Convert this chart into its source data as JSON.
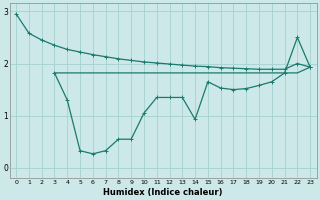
{
  "xlabel": "Humidex (Indice chaleur)",
  "background_color": "#cce8e8",
  "grid_color": "#aad4d4",
  "line_color": "#1a7a6e",
  "x_ticks": [
    0,
    1,
    2,
    3,
    4,
    5,
    6,
    7,
    8,
    9,
    10,
    11,
    12,
    13,
    14,
    15,
    16,
    17,
    18,
    19,
    20,
    21,
    22,
    23
  ],
  "ylim": [
    -0.2,
    3.15
  ],
  "xlim": [
    -0.5,
    23.5
  ],
  "yticks": [
    0,
    1,
    2,
    3
  ],
  "line1_x": [
    0,
    1,
    2,
    3,
    4,
    5,
    6,
    7,
    8,
    9,
    10,
    11,
    12,
    13,
    14,
    15,
    16,
    17,
    18,
    19,
    20,
    21,
    22,
    23
  ],
  "line1_y": [
    2.95,
    2.58,
    2.45,
    2.35,
    2.27,
    2.22,
    2.17,
    2.13,
    2.09,
    2.06,
    2.03,
    2.01,
    1.99,
    1.97,
    1.95,
    1.94,
    1.92,
    1.91,
    1.9,
    1.89,
    1.89,
    1.89,
    2.0,
    1.93
  ],
  "line2_x": [
    3,
    4,
    5,
    6,
    7,
    8,
    9,
    10,
    11,
    12,
    13,
    14,
    15,
    16,
    17,
    18,
    19,
    20,
    21,
    22,
    23
  ],
  "line2_y": [
    1.82,
    1.82,
    1.82,
    1.82,
    1.82,
    1.82,
    1.82,
    1.82,
    1.82,
    1.82,
    1.82,
    1.82,
    1.82,
    1.82,
    1.82,
    1.82,
    1.82,
    1.82,
    1.82,
    1.82,
    1.93
  ],
  "line3_x": [
    3,
    4,
    5,
    6,
    7,
    8,
    9,
    10,
    11,
    12,
    13,
    14,
    15,
    16,
    17,
    18,
    19,
    20,
    21,
    22,
    23
  ],
  "line3_y": [
    1.82,
    1.3,
    0.33,
    0.27,
    0.33,
    0.55,
    0.55,
    1.05,
    1.35,
    1.35,
    1.35,
    0.93,
    1.65,
    1.53,
    1.5,
    1.52,
    1.58,
    1.65,
    1.82,
    2.5,
    1.93
  ]
}
